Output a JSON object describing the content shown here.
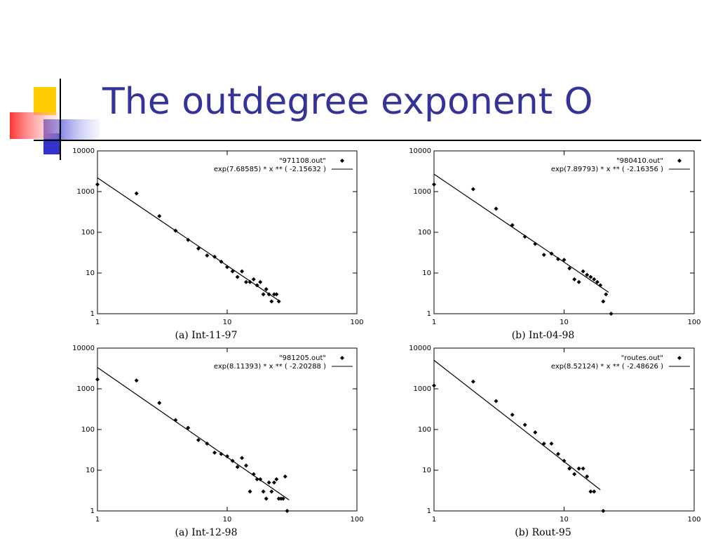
{
  "slide": {
    "title": "The outdegree exponent O"
  },
  "chart_data": [
    {
      "type": "scatter",
      "caption": "(a) Int-11-97",
      "xscale": "log",
      "yscale": "log",
      "xlim": [
        1,
        100
      ],
      "ylim": [
        1,
        10000
      ],
      "xticks": [
        1,
        10,
        100
      ],
      "yticks": [
        1,
        10,
        100,
        1000,
        10000
      ],
      "legend": "upper right",
      "series": [
        {
          "name": "\"971108.out\"",
          "color": "#000000",
          "marker": "diamond",
          "x": [
            1,
            2,
            3,
            4,
            5,
            6,
            7,
            8,
            9,
            10,
            11,
            12,
            13,
            14,
            15,
            16,
            17,
            18,
            19,
            20,
            21,
            22,
            23,
            24,
            25
          ],
          "values": [
            1500,
            900,
            250,
            110,
            65,
            40,
            27,
            25,
            19,
            14,
            11,
            8,
            11,
            6,
            6,
            7,
            5,
            6,
            3,
            4,
            3,
            2,
            3,
            3,
            2
          ]
        },
        {
          "name": "exp(7.68585)  * x ** (  -2.15632 )",
          "color": "#000000",
          "marker": "line",
          "x": [
            1,
            25
          ],
          "values": [
            2175,
            2.1
          ]
        }
      ]
    },
    {
      "type": "scatter",
      "caption": "(b) Int-04-98",
      "xscale": "log",
      "yscale": "log",
      "xlim": [
        1,
        100
      ],
      "ylim": [
        1,
        10000
      ],
      "xticks": [
        1,
        10,
        100
      ],
      "yticks": [
        1,
        10,
        100,
        1000,
        10000
      ],
      "legend": "upper right",
      "series": [
        {
          "name": "\"980410.out\"",
          "color": "#000000",
          "marker": "diamond",
          "x": [
            1,
            2,
            3,
            4,
            5,
            6,
            7,
            8,
            9,
            10,
            11,
            12,
            13,
            14,
            15,
            16,
            17,
            18,
            19,
            20,
            21,
            23
          ],
          "values": [
            1500,
            1150,
            380,
            150,
            78,
            52,
            28,
            30,
            22,
            21,
            13,
            7,
            6,
            11,
            9,
            8,
            7,
            6,
            5,
            2,
            3,
            1
          ]
        },
        {
          "name": "exp(7.89793)  * x ** (  -2.16356 )",
          "color": "#000000",
          "marker": "line",
          "x": [
            1,
            22
          ],
          "values": [
            2691,
            3.35
          ]
        }
      ]
    },
    {
      "type": "scatter",
      "caption": "(a) Int-12-98",
      "xscale": "log",
      "yscale": "log",
      "xlim": [
        1,
        100
      ],
      "ylim": [
        1,
        10000
      ],
      "xticks": [
        1,
        10,
        100
      ],
      "yticks": [
        1,
        10,
        100,
        1000,
        10000
      ],
      "legend": "upper right",
      "series": [
        {
          "name": "\"981205.out\"",
          "color": "#000000",
          "marker": "diamond",
          "x": [
            1,
            2,
            3,
            4,
            5,
            6,
            7,
            8,
            9,
            10,
            11,
            12,
            13,
            14,
            15,
            16,
            17,
            18,
            19,
            20,
            21,
            22,
            23,
            24,
            25,
            26,
            27,
            28,
            29
          ],
          "values": [
            1700,
            1600,
            450,
            170,
            110,
            55,
            45,
            27,
            25,
            22,
            17,
            12,
            20,
            13,
            3,
            8,
            6,
            6,
            3,
            2,
            5,
            3,
            5,
            6,
            2,
            2,
            2,
            7,
            1
          ]
        },
        {
          "name": "exp(8.11393)  * x ** (  -2.20288 )",
          "color": "#000000",
          "marker": "line",
          "x": [
            1,
            30
          ],
          "values": [
            3338,
            1.86
          ]
        }
      ]
    },
    {
      "type": "scatter",
      "caption": "(b) Rout-95",
      "xscale": "log",
      "yscale": "log",
      "xlim": [
        1,
        100
      ],
      "ylim": [
        1,
        10000
      ],
      "xticks": [
        1,
        10,
        100
      ],
      "yticks": [
        1,
        10,
        100,
        1000,
        10000
      ],
      "legend": "upper right",
      "series": [
        {
          "name": "\"routes.out\"",
          "color": "#000000",
          "marker": "diamond",
          "x": [
            1,
            2,
            3,
            4,
            5,
            6,
            7,
            8,
            9,
            10,
            11,
            12,
            13,
            14,
            15,
            16,
            17,
            20
          ],
          "values": [
            1200,
            1500,
            500,
            230,
            130,
            85,
            45,
            45,
            25,
            17,
            11,
            8,
            11,
            11,
            7,
            3,
            3,
            1
          ]
        },
        {
          "name": "exp(8.52124)  * x ** (  -2.48626 )",
          "color": "#000000",
          "marker": "line",
          "x": [
            1,
            19
          ],
          "values": [
            5014,
            3.3
          ]
        }
      ]
    }
  ]
}
